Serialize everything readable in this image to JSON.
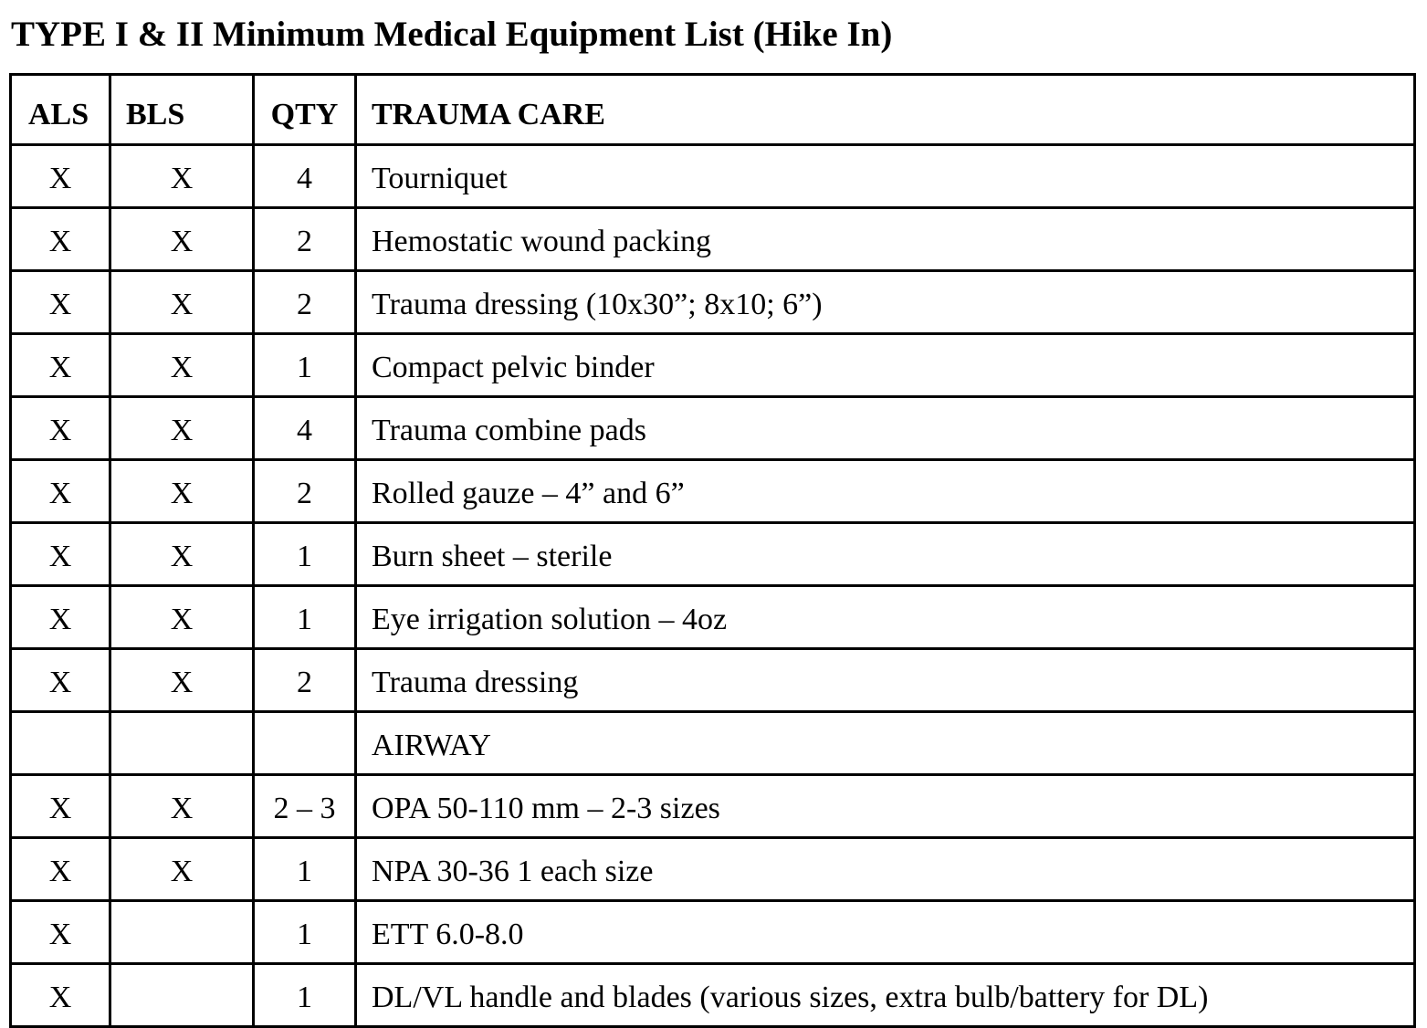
{
  "title": "TYPE I & II Minimum Medical Equipment List (Hike In)",
  "table": {
    "header": [
      "ALS",
      "BLS",
      "QTY",
      "TRAUMA CARE"
    ],
    "rows": [
      [
        "X",
        "X",
        4,
        "Tourniquet"
      ],
      [
        "X",
        "X",
        2,
        "Hemostatic wound packing"
      ],
      [
        "X",
        "X",
        2,
        "Trauma dressing (10x30”; 8x10; 6”)"
      ],
      [
        "X",
        "X",
        1,
        "Compact pelvic binder"
      ],
      [
        "X",
        "X",
        4,
        "Trauma combine pads"
      ],
      [
        "X",
        "X",
        2,
        "Rolled gauze – 4” and 6”"
      ],
      [
        "X",
        "X",
        1,
        "Burn sheet – sterile"
      ],
      [
        "X",
        "X",
        1,
        "Eye irrigation solution – 4oz"
      ],
      [
        "X",
        "X",
        2,
        "Trauma dressing"
      ],
      [
        null,
        null,
        null,
        "AIRWAY"
      ],
      [
        "X",
        "X",
        "2 – 3",
        "OPA 50-110 mm – 2-3 sizes"
      ],
      [
        "X",
        "X",
        1,
        "NPA 30-36 1 each size"
      ],
      [
        "X",
        null,
        1,
        "ETT 6.0-8.0"
      ],
      [
        "X",
        null,
        1,
        "DL/VL handle and blades (various sizes, extra bulb/battery for DL)"
      ]
    ]
  }
}
